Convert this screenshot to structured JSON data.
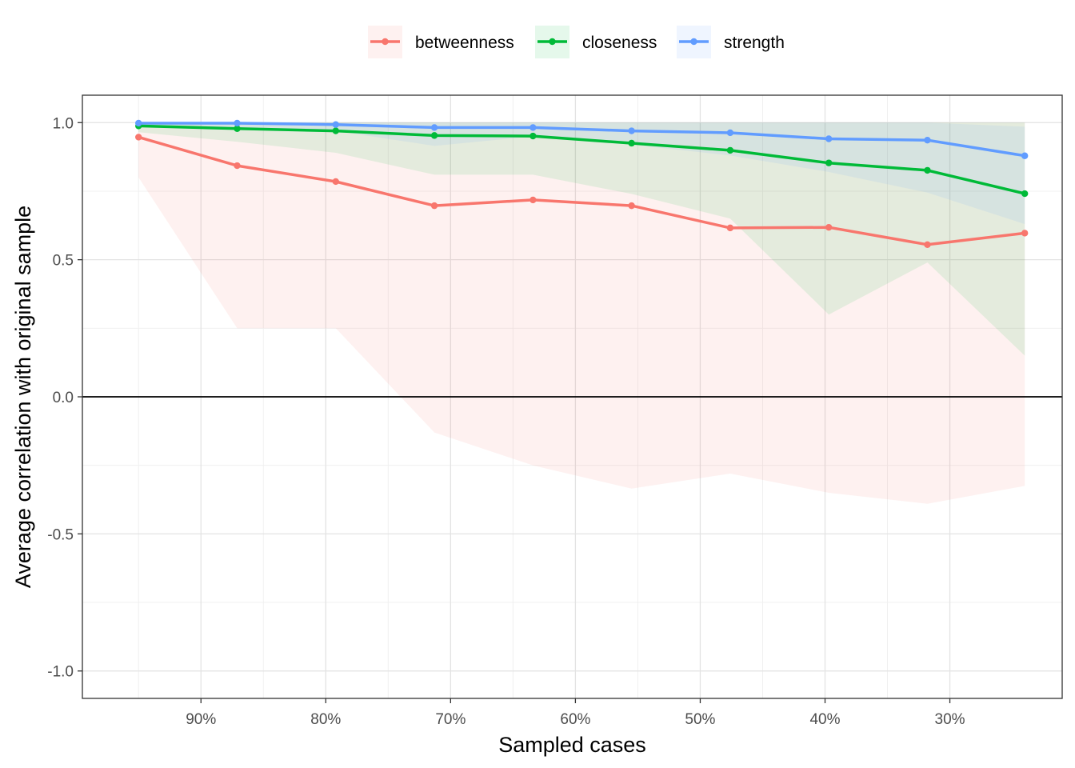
{
  "chart_data": {
    "type": "line",
    "xlabel": "Sampled cases",
    "ylabel": "Average correlation with original sample",
    "x_reversed": true,
    "xlim": [
      0.995,
      0.21
    ],
    "ylim": [
      -1.1,
      1.1
    ],
    "x_ticks": [
      0.9,
      0.8,
      0.7,
      0.6,
      0.5,
      0.4,
      0.3
    ],
    "x_tick_labels": [
      "90%",
      "80%",
      "70%",
      "60%",
      "50%",
      "40%",
      "30%"
    ],
    "y_ticks": [
      1.0,
      0.5,
      0.0,
      -0.5,
      -1.0
    ],
    "y_tick_labels": [
      "1.0",
      "0.5",
      "0.0",
      "-0.5",
      "-1.0"
    ],
    "hline": 0,
    "grid": true,
    "legend_position": "top",
    "x": [
      0.95,
      0.871,
      0.792,
      0.713,
      0.634,
      0.555,
      0.476,
      0.397,
      0.318,
      0.24
    ],
    "series": [
      {
        "name": "betweenness",
        "color": "#F8766D",
        "values": [
          0.947,
          0.843,
          0.785,
          0.697,
          0.718,
          0.697,
          0.616,
          0.618,
          0.555,
          0.597
        ],
        "lower": [
          0.8,
          0.25,
          0.25,
          -0.13,
          -0.25,
          -0.335,
          -0.28,
          -0.35,
          -0.39,
          -0.325
        ],
        "upper": [
          1.0,
          1.0,
          1.0,
          1.0,
          1.0,
          1.0,
          1.0,
          1.0,
          1.0,
          1.0
        ]
      },
      {
        "name": "closeness",
        "color": "#00BA38",
        "values": [
          0.988,
          0.978,
          0.97,
          0.953,
          0.951,
          0.925,
          0.899,
          0.853,
          0.826,
          0.741
        ],
        "lower": [
          0.965,
          0.93,
          0.89,
          0.81,
          0.81,
          0.74,
          0.65,
          0.3,
          0.49,
          0.15
        ],
        "upper": [
          1.0,
          1.0,
          1.0,
          1.0,
          1.0,
          1.0,
          1.0,
          1.0,
          1.0,
          1.0
        ]
      },
      {
        "name": "strength",
        "color": "#619CFF",
        "values": [
          0.998,
          0.998,
          0.993,
          0.982,
          0.982,
          0.97,
          0.963,
          0.941,
          0.936,
          0.879
        ],
        "lower": [
          0.99,
          0.975,
          0.97,
          0.915,
          0.95,
          0.92,
          0.88,
          0.82,
          0.745,
          0.63
        ],
        "upper": [
          1.0,
          1.0,
          1.0,
          1.0,
          1.0,
          1.0,
          1.0,
          1.0,
          1.0,
          0.985
        ]
      }
    ]
  }
}
